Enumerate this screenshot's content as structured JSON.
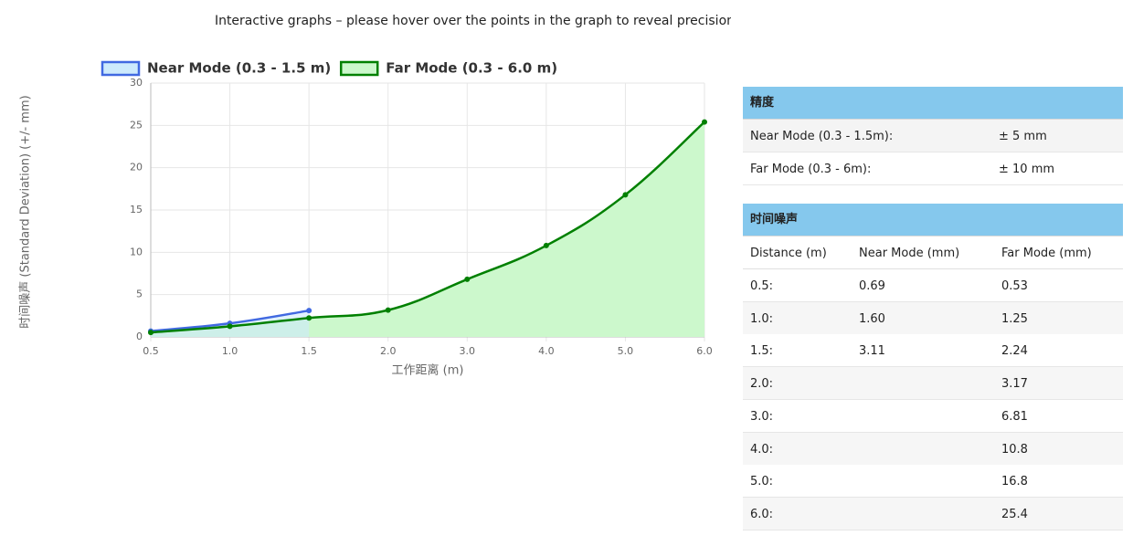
{
  "header": {
    "title": "Interactive graphs – please hover over the points in the graph to reveal precision numbers (mm)"
  },
  "chart_data": {
    "type": "line",
    "xlabel": "工作距离 (m)",
    "ylabel": "时间噪声 (Standard Deviation) (+/- mm)",
    "categories": [
      "0.5",
      "1.0",
      "1.5",
      "2.0",
      "3.0",
      "4.0",
      "5.0",
      "6.0"
    ],
    "series": [
      {
        "name": "Near Mode (0.3 - 1.5 m)",
        "color": "#4169e1",
        "fill": "#cdeafc",
        "values": [
          0.69,
          1.6,
          3.11,
          null,
          null,
          null,
          null,
          null
        ]
      },
      {
        "name": "Far Mode (0.3 - 6.0 m)",
        "color": "#008000",
        "fill": "#ccf8cc",
        "values": [
          0.53,
          1.25,
          2.24,
          3.17,
          6.81,
          10.8,
          16.8,
          25.4
        ]
      }
    ],
    "ylim": [
      0,
      30
    ],
    "yticks": [
      0,
      5,
      10,
      15,
      20,
      25,
      30
    ],
    "grid": true,
    "legend": "top-left"
  },
  "precision": {
    "title": "精度",
    "rows": [
      {
        "label": "Near Mode (0.3 - 1.5m):",
        "value": "± 5 mm"
      },
      {
        "label": "Far Mode (0.3 - 6m):",
        "value": "± 10 mm"
      }
    ]
  },
  "noise": {
    "title": "时间噪声",
    "header": {
      "distance": "Distance (m)",
      "near": "Near Mode (mm)",
      "far": "Far Mode (mm)"
    },
    "rows": [
      {
        "distance": "0.5:",
        "near": "0.69",
        "far": "0.53"
      },
      {
        "distance": "1.0:",
        "near": "1.60",
        "far": "1.25"
      },
      {
        "distance": "1.5:",
        "near": "3.11",
        "far": "2.24"
      },
      {
        "distance": "2.0:",
        "far": "3.17"
      },
      {
        "distance": "3.0:",
        "far": "6.81"
      },
      {
        "distance": "4.0:",
        "far": "10.8"
      },
      {
        "distance": "5.0:",
        "far": "16.8"
      },
      {
        "distance": "6.0:",
        "far": "25.4"
      }
    ]
  }
}
